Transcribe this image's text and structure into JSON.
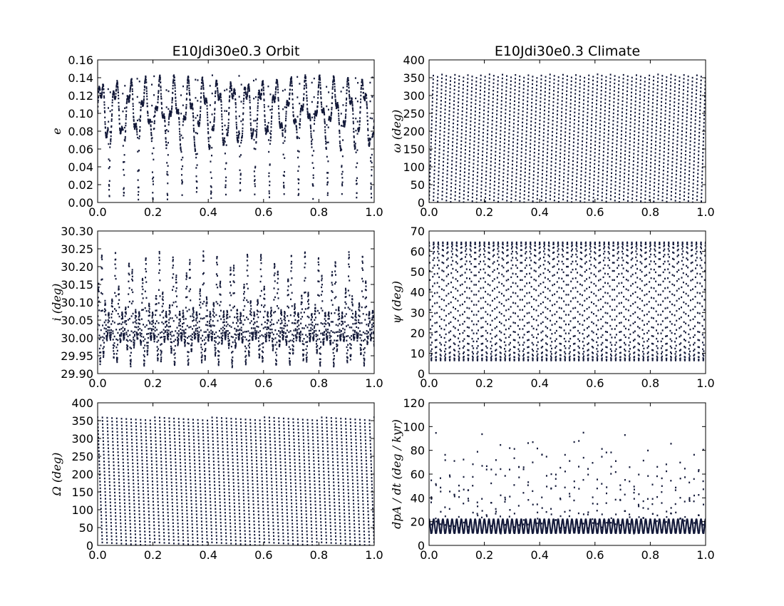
{
  "figure": {
    "background": "#ffffff",
    "series_color": "#141a3a"
  },
  "chart_data": [
    {
      "id": "e",
      "type": "scatter",
      "title": "E10Jdi30e0.3 Orbit",
      "xlabel": "",
      "ylabel": "e",
      "xlim": [
        0.0,
        1.0
      ],
      "ylim": [
        0.0,
        0.16
      ],
      "xticks": [
        "0.0",
        "0.2",
        "0.4",
        "0.6",
        "0.8",
        "1.0"
      ],
      "yticks": [
        "0.00",
        "0.02",
        "0.04",
        "0.06",
        "0.08",
        "0.10",
        "0.12",
        "0.14",
        "0.16"
      ],
      "grid": false,
      "pattern": {
        "kind": "eccentricity",
        "cycles": 19,
        "min": 0.003,
        "max": 0.143,
        "mean": 0.1
      }
    },
    {
      "id": "omega",
      "type": "scatter",
      "title": "E10Jdi30e0.3 Climate",
      "xlabel": "",
      "ylabel": "ω (deg)",
      "xlim": [
        0.0,
        1.0
      ],
      "ylim": [
        0,
        400
      ],
      "xticks": [
        "0.0",
        "0.2",
        "0.4",
        "0.6",
        "0.8",
        "1.0"
      ],
      "yticks": [
        "0",
        "50",
        "100",
        "150",
        "200",
        "250",
        "300",
        "350",
        "400"
      ],
      "grid": false,
      "pattern": {
        "kind": "sawtooth-up",
        "cycles": 64,
        "min": 0,
        "max": 360
      }
    },
    {
      "id": "i",
      "type": "scatter",
      "title": "",
      "xlabel": "",
      "ylabel": "i (deg)",
      "xlim": [
        0.0,
        1.0
      ],
      "ylim": [
        29.9,
        30.3
      ],
      "xticks": [
        "0.0",
        "0.2",
        "0.4",
        "0.6",
        "0.8",
        "1.0"
      ],
      "yticks": [
        "29.90",
        "29.95",
        "30.00",
        "30.05",
        "30.10",
        "30.15",
        "30.20",
        "30.25",
        "30.30"
      ],
      "grid": false,
      "pattern": {
        "kind": "inclination",
        "cycles": 19,
        "min": 29.91,
        "max": 30.27,
        "mean": 30.02
      }
    },
    {
      "id": "psi",
      "type": "scatter",
      "title": "",
      "xlabel": "",
      "ylabel": "ψ (deg)",
      "xlim": [
        0.0,
        1.0
      ],
      "ylim": [
        0,
        70
      ],
      "xticks": [
        "0.0",
        "0.2",
        "0.4",
        "0.6",
        "0.8",
        "1.0"
      ],
      "yticks": [
        "0",
        "10",
        "20",
        "30",
        "40",
        "50",
        "60",
        "70"
      ],
      "grid": false,
      "pattern": {
        "kind": "oscillation",
        "cycles": 60,
        "min": 6.5,
        "max": 64.5
      }
    },
    {
      "id": "Omega",
      "type": "scatter",
      "title": "",
      "xlabel": "",
      "ylabel": "Ω (deg)",
      "xlim": [
        0.0,
        1.0
      ],
      "ylim": [
        0,
        400
      ],
      "xticks": [
        "0.0",
        "0.2",
        "0.4",
        "0.6",
        "0.8",
        "1.0"
      ],
      "yticks": [
        "0",
        "50",
        "100",
        "150",
        "200",
        "250",
        "300",
        "350",
        "400"
      ],
      "grid": false,
      "pattern": {
        "kind": "sawtooth-down",
        "cycles": 58,
        "min": 0,
        "max": 360
      }
    },
    {
      "id": "dpA",
      "type": "scatter",
      "title": "",
      "xlabel": "",
      "ylabel": "dpA / dt (deg / kyr)",
      "xlim": [
        0.0,
        1.0
      ],
      "ylim": [
        0,
        120
      ],
      "xticks": [
        "0.0",
        "0.2",
        "0.4",
        "0.6",
        "0.8",
        "1.0"
      ],
      "yticks": [
        "0",
        "20",
        "40",
        "60",
        "80",
        "100",
        "120"
      ],
      "grid": false,
      "pattern": {
        "kind": "precession-rate",
        "cycles": 60,
        "min": 10,
        "base_max": 22,
        "max": 108
      }
    }
  ]
}
